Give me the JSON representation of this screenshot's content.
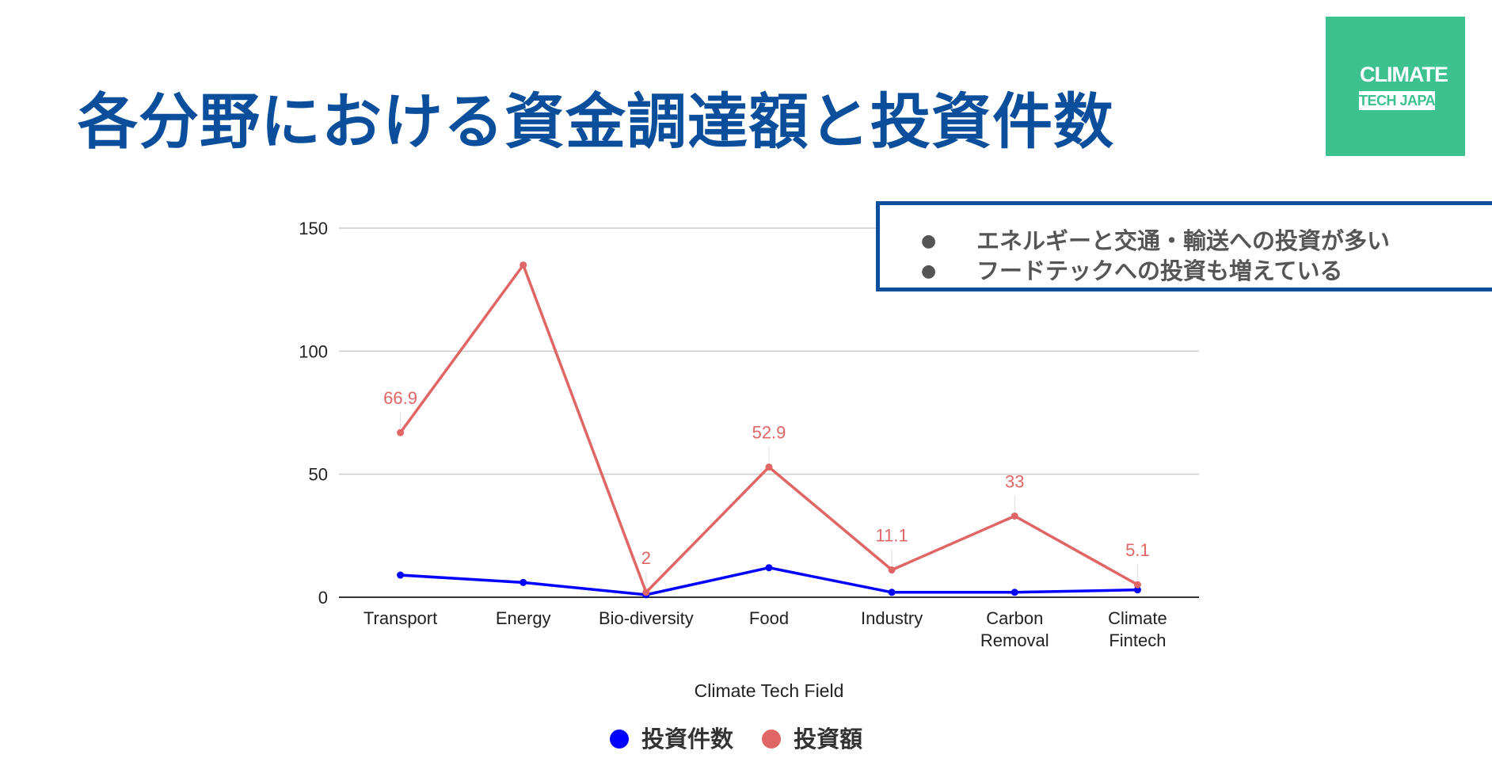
{
  "slide": {
    "title": "各分野における資金調達額と投資件数"
  },
  "logo": {
    "line1": "CLIMATE",
    "line2": "TECH JAPAN",
    "bg_color": "#3dc18f"
  },
  "callout": {
    "bullets": [
      "エネルギーと交通・輸送への投資が多い",
      "フードテックへの投資も増えている"
    ],
    "bullet_glyph": "●"
  },
  "colors": {
    "title": "#0b4f9c",
    "series_count": "#0000ff",
    "series_amount": "#e06666"
  },
  "chart_data": {
    "type": "line",
    "title": "",
    "xlabel": "Climate Tech Field",
    "ylabel": "",
    "ylim": [
      0,
      150
    ],
    "yticks": [
      0,
      50,
      100,
      150
    ],
    "categories": [
      [
        "Transport"
      ],
      [
        "Energy"
      ],
      [
        "Bio-diversity"
      ],
      [
        "Food"
      ],
      [
        "Industry"
      ],
      [
        "Carbon",
        "Removal"
      ],
      [
        "Climate",
        "Fintech"
      ]
    ],
    "series": [
      {
        "name": "投資件数",
        "color": "#0000ff",
        "values": [
          9,
          6,
          1,
          12,
          2,
          2,
          3
        ],
        "labels": [
          null,
          null,
          null,
          null,
          null,
          null,
          null
        ]
      },
      {
        "name": "投資額",
        "color": "#e06666",
        "values": [
          66.9,
          135,
          2,
          52.9,
          11.1,
          33,
          5.1
        ],
        "labels": [
          "66.9",
          null,
          "2",
          "52.9",
          "11.1",
          "33",
          "5.1"
        ]
      }
    ],
    "legend_position": "bottom"
  }
}
